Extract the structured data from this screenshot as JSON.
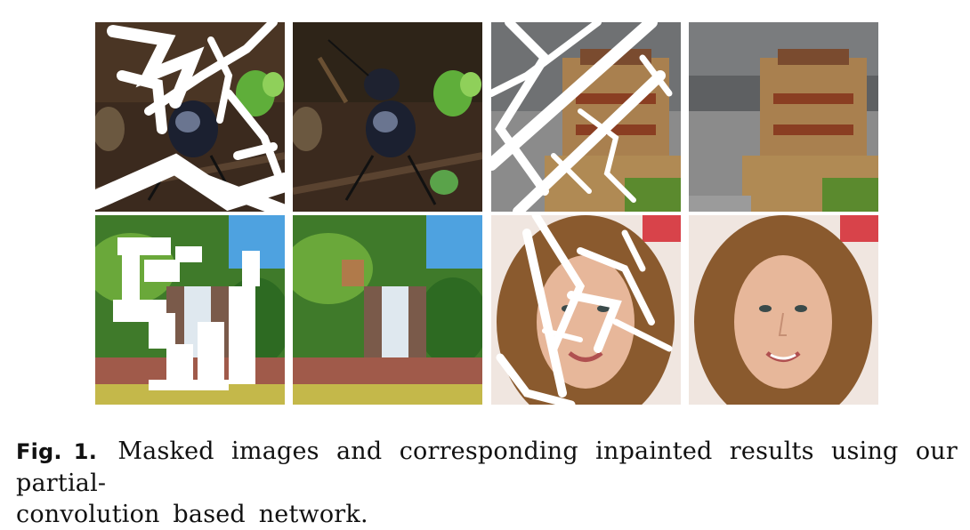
{
  "figure": {
    "label": "Fig. 1.",
    "caption_line1": "Masked images and corresponding inpainted results using our partial-",
    "caption_line2": "convolution based network.",
    "panels": [
      {
        "name": "beetle-masked",
        "scene": "beetle",
        "masked": true
      },
      {
        "name": "beetle-inpainted",
        "scene": "beetle",
        "masked": false
      },
      {
        "name": "building-masked",
        "scene": "building",
        "masked": true
      },
      {
        "name": "building-inpainted",
        "scene": "building",
        "masked": false
      },
      {
        "name": "waterfall-masked",
        "scene": "waterfall",
        "masked": true
      },
      {
        "name": "waterfall-inpainted",
        "scene": "waterfall",
        "masked": false
      },
      {
        "name": "face-masked",
        "scene": "face",
        "masked": true
      },
      {
        "name": "face-inpainted",
        "scene": "face",
        "masked": false
      }
    ]
  }
}
